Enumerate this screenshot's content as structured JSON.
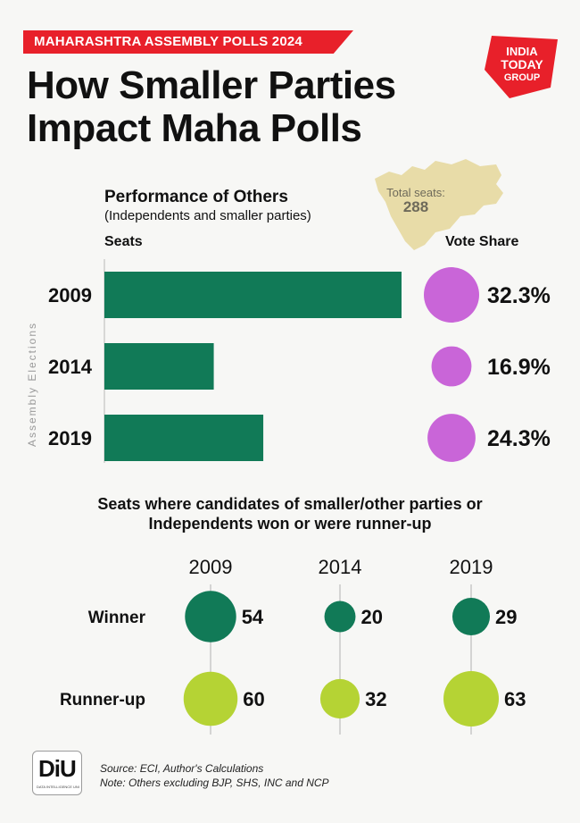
{
  "header": {
    "tag": "MAHARASHTRA ASSEMBLY POLLS 2024",
    "title_line1": "How Smaller Parties",
    "title_line2": "Impact Maha Polls",
    "logo_line1": "INDIA",
    "logo_line2": "TODAY",
    "logo_line3": "GROUP"
  },
  "map": {
    "label": "Total seats:",
    "value": "288",
    "color": "#e8dca8"
  },
  "section1": {
    "title": "Performance of Others",
    "subtitle": "(Independents and smaller parties)",
    "seats_label": "Seats",
    "vote_share_label": "Vote Share",
    "axis_label": "Assembly Elections"
  },
  "section2": {
    "title_line1": "Seats where candidates of smaller/other parties or",
    "title_line2": "Independents won or were runner-up"
  },
  "footer": {
    "source": "Source: ECI, Author's Calculations",
    "note": "Note: Others excluding BJP, SHS, INC and NCP",
    "logo_text": "DiU",
    "logo_sub": "DATA INTELLIGENCE UNIT"
  },
  "chart_data": [
    {
      "type": "bar",
      "orientation": "horizontal",
      "categories": [
        "2009",
        "2014",
        "2019"
      ],
      "values": [
        288,
        106,
        154
      ],
      "vote_share": [
        32.3,
        16.9,
        24.3
      ],
      "vote_share_labels": [
        "32.3%",
        "16.9%",
        "24.3%"
      ],
      "bar_color": "#117a57",
      "bubble_color": "#c965d8"
    },
    {
      "type": "scatter",
      "years": [
        "2009",
        "2014",
        "2019"
      ],
      "rows": [
        {
          "name": "Winner",
          "values": [
            54,
            20,
            29
          ],
          "color": "#117a57"
        },
        {
          "name": "Runner-up",
          "values": [
            60,
            32,
            63
          ],
          "color": "#b5d334"
        }
      ]
    }
  ]
}
